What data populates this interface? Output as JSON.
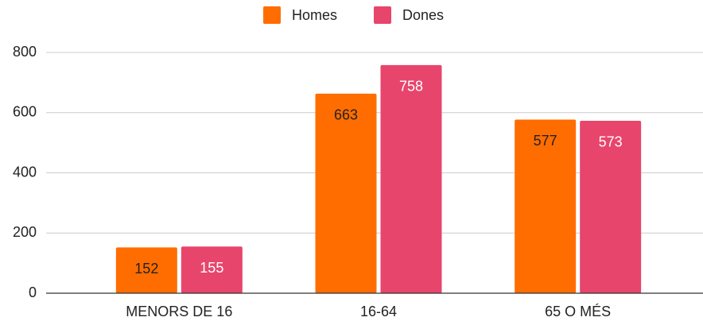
{
  "chart_data": {
    "type": "bar",
    "categories": [
      "MENORS DE 16",
      "16-64",
      "65 O MÉS"
    ],
    "series": [
      {
        "name": "Homes",
        "color": "#ff6d01",
        "label_color": "#222222",
        "values": [
          152,
          663,
          577
        ]
      },
      {
        "name": "Dones",
        "color": "#e8456c",
        "label_color": "#ffffff",
        "values": [
          155,
          758,
          573
        ]
      }
    ],
    "ylim": [
      0,
      800
    ],
    "yticks": [
      0,
      200,
      400,
      600,
      800
    ],
    "grid": true,
    "legend": "top"
  }
}
